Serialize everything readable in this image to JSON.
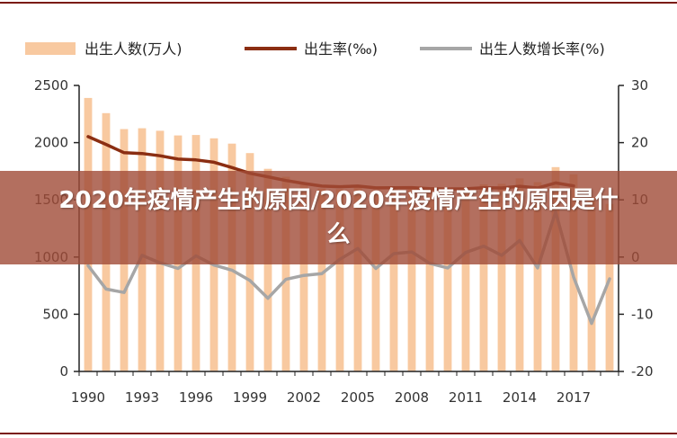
{
  "banner_title": "2020年疫情产生的原因/2020年疫情产生的原因是什么",
  "chart_data": {
    "type": "bar+line",
    "legend": [
      "出生人数(万人)",
      "出生率(‰)",
      "出生人数增长率(%)"
    ],
    "colors": {
      "bar": "#f8c9a0",
      "line_rate": "#8b2e12",
      "line_growth": "#a6a6a6",
      "axis": "#222222",
      "frame": "#7a1b12"
    },
    "x": [
      1990,
      1991,
      1992,
      1993,
      1994,
      1995,
      1996,
      1997,
      1998,
      1999,
      2000,
      2001,
      2002,
      2003,
      2004,
      2005,
      2006,
      2007,
      2008,
      2009,
      2010,
      2011,
      2012,
      2013,
      2014,
      2015,
      2016,
      2017,
      2018,
      2019
    ],
    "x_tick_labels": [
      "1990",
      "1993",
      "1996",
      "1999",
      "2002",
      "2005",
      "2008",
      "2011",
      "2014",
      "2017"
    ],
    "series": [
      {
        "name": "出生人数(万人)",
        "kind": "bar",
        "axis": "left",
        "values": [
          2391,
          2258,
          2119,
          2126,
          2104,
          2063,
          2067,
          2038,
          1991,
          1909,
          1771,
          1702,
          1647,
          1599,
          1593,
          1617,
          1584,
          1594,
          1608,
          1591,
          1592,
          1604,
          1635,
          1640,
          1687,
          1655,
          1786,
          1723,
          1523,
          1465
        ]
      },
      {
        "name": "出生率(‰)",
        "kind": "line",
        "axis": "right",
        "values": [
          21.06,
          19.68,
          18.24,
          18.09,
          17.7,
          17.12,
          16.98,
          16.57,
          15.64,
          14.64,
          14.03,
          13.38,
          12.86,
          12.41,
          12.29,
          12.4,
          12.09,
          12.1,
          12.14,
          11.95,
          11.9,
          11.93,
          12.1,
          12.08,
          12.37,
          12.07,
          12.95,
          12.43,
          null,
          null
        ]
      },
      {
        "name": "出生人数增长率(%)",
        "kind": "line",
        "axis": "right",
        "values": [
          -1.5,
          -5.6,
          -6.2,
          0.3,
          -1.0,
          -2.0,
          0.2,
          -1.4,
          -2.3,
          -4.1,
          -7.2,
          -3.9,
          -3.2,
          -2.9,
          -0.4,
          1.5,
          -2.0,
          0.6,
          0.9,
          -1.1,
          -1.9,
          0.8,
          1.9,
          0.3,
          2.9,
          -1.9,
          7.9,
          -3.5,
          -11.6,
          -3.8
        ]
      }
    ],
    "ylim_left": [
      0,
      2500
    ],
    "yticks_left": [
      0,
      500,
      1000,
      1500,
      2000,
      2500
    ],
    "ylim_right": [
      -20,
      30
    ],
    "yticks_right": [
      -20,
      -10,
      0,
      10,
      20,
      30
    ],
    "legend_position": "top"
  }
}
